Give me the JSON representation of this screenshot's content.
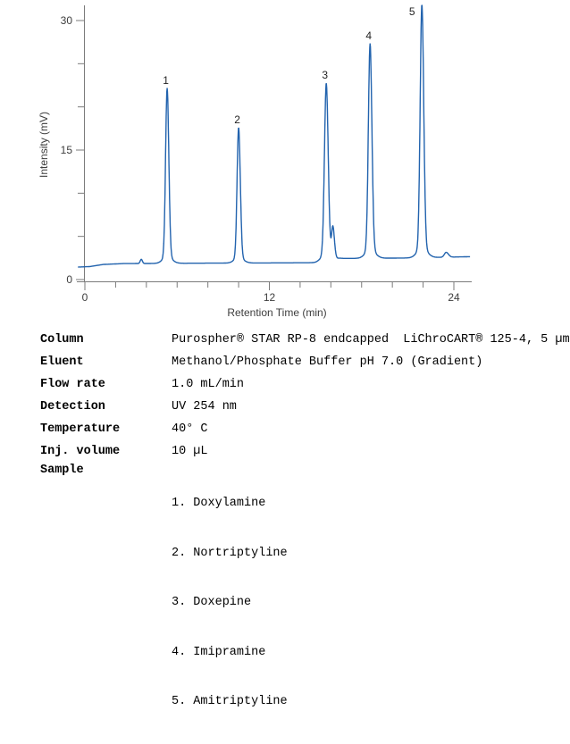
{
  "chart_data": {
    "type": "line",
    "title": "",
    "xlabel": "Retention Time (min)",
    "ylabel": "Intensity (mV)",
    "x_axis": {
      "min": 0,
      "max": 24,
      "major_ticks": [
        0,
        12,
        24
      ],
      "minor_step": 2,
      "unit": "min"
    },
    "y_axis": {
      "min": 0,
      "max": 30,
      "major_ticks": [
        0,
        15,
        30
      ],
      "minor_step": 5,
      "unit": "mV"
    },
    "line_color": "#2263ae",
    "axis_color": "#7b7b7b",
    "tick_label_color": "#3d3d3d",
    "peak_label_color": "#222222",
    "baseline_mV": [
      [
        -0.45,
        1.45
      ],
      [
        0.3,
        1.5
      ],
      [
        1.2,
        1.75
      ],
      [
        2.5,
        1.85
      ],
      [
        8,
        1.9
      ],
      [
        15,
        1.95
      ],
      [
        15.9,
        2.2
      ],
      [
        16.6,
        2.45
      ],
      [
        18,
        2.45
      ],
      [
        21,
        2.5
      ],
      [
        22.5,
        2.55
      ],
      [
        25.05,
        2.65
      ]
    ],
    "peaks": [
      {
        "label": "",
        "name": "baseline-blip",
        "rt_min": 3.67,
        "apex_mV": 2.35,
        "sigma_l": 0.07,
        "sigma_r": 0.07
      },
      {
        "label": "1",
        "name": "Doxylamine",
        "rt_min": 5.35,
        "apex_mV": 22.15,
        "sigma_l": 0.1,
        "sigma_r": 0.11
      },
      {
        "label": "2",
        "name": "Nortriptyline",
        "rt_min": 10.0,
        "apex_mV": 17.6,
        "sigma_l": 0.1,
        "sigma_r": 0.11
      },
      {
        "label": "3",
        "name": "Doxepine",
        "rt_min": 15.7,
        "apex_mV": 22.75,
        "sigma_l": 0.115,
        "sigma_r": 0.125
      },
      {
        "label": "",
        "name": "shoulder-after-peak-3",
        "rt_min": 16.13,
        "apex_mV": 5.8,
        "sigma_l": 0.08,
        "sigma_r": 0.1
      },
      {
        "label": "4",
        "name": "Imipramine",
        "rt_min": 18.55,
        "apex_mV": 27.3,
        "sigma_l": 0.11,
        "sigma_r": 0.12
      },
      {
        "label": "5",
        "name": "Amitriptyline",
        "rt_min": 21.92,
        "apex_mV": 31.85,
        "sigma_l": 0.11,
        "sigma_r": 0.12
      },
      {
        "label": "",
        "name": "post-peak-5-bump",
        "rt_min": 23.5,
        "apex_mV": 3.15,
        "sigma_l": 0.12,
        "sigma_r": 0.15
      }
    ]
  },
  "conditions": {
    "rows": [
      {
        "label": "Column",
        "value": "Purospher® STAR RP-8 endcapped  LiChroCART® 125-4, 5 µm"
      },
      {
        "label": "Eluent",
        "value": "Methanol/Phosphate Buffer pH 7.0 (Gradient)"
      },
      {
        "label": "Flow rate",
        "value": "1.0 mL/min"
      },
      {
        "label": "Detection",
        "value": "UV 254 nm"
      },
      {
        "label": "Temperature",
        "value": "40° C"
      },
      {
        "label": "Inj. volume",
        "value": "10 µL"
      }
    ],
    "sample": {
      "label": "Sample",
      "items": [
        "1. Doxylamine",
        "2. Nortriptyline",
        "3. Doxepine",
        "4. Imipramine",
        "5. Amitriptyline"
      ]
    }
  }
}
